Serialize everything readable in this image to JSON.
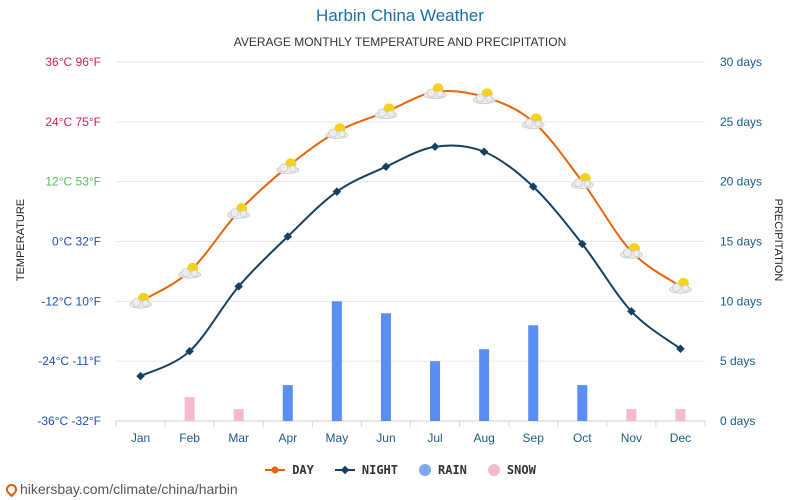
{
  "chart_data": {
    "type": "line",
    "title": "Harbin China Weather",
    "subtitle": "AVERAGE MONTHLY TEMPERATURE AND PRECIPITATION",
    "ylabel_left": "TEMPERATURE",
    "ylabel_right": "PRECIPITATION",
    "categories": [
      "Jan",
      "Feb",
      "Mar",
      "Apr",
      "May",
      "Jun",
      "Jul",
      "Aug",
      "Sep",
      "Oct",
      "Nov",
      "Dec"
    ],
    "temp_axis": {
      "ylim": [
        -36,
        36
      ],
      "ticks": [
        {
          "value": 36,
          "label": "36°C 96°F",
          "color": "#d81b60"
        },
        {
          "value": 24,
          "label": "24°C 75°F",
          "color": "#d81b60"
        },
        {
          "value": 12,
          "label": "12°C 53°F",
          "color": "#5cb85c"
        },
        {
          "value": 0,
          "label": "0°C 32°F",
          "color": "#1f4fb4"
        },
        {
          "value": -12,
          "label": "-12°C 10°F",
          "color": "#1f4fb4"
        },
        {
          "value": -24,
          "label": "-24°C -11°F",
          "color": "#1f4fb4"
        },
        {
          "value": -36,
          "label": "-36°C -32°F",
          "color": "#1f4fb4"
        }
      ]
    },
    "precip_axis": {
      "ylim": [
        0,
        30
      ],
      "ticks": [
        {
          "value": 30,
          "label": "30 days"
        },
        {
          "value": 25,
          "label": "25 days"
        },
        {
          "value": 20,
          "label": "20 days"
        },
        {
          "value": 15,
          "label": "15 days"
        },
        {
          "value": 10,
          "label": "10 days"
        },
        {
          "value": 5,
          "label": "5 days"
        },
        {
          "value": 0,
          "label": "0 days"
        }
      ]
    },
    "series": [
      {
        "name": "DAY",
        "kind": "line",
        "axis": "temperature",
        "color": "#e8640a",
        "values": [
          -12,
          -6,
          6,
          15,
          22,
          26,
          30,
          29,
          24,
          12,
          -2,
          -9
        ]
      },
      {
        "name": "NIGHT",
        "kind": "line",
        "axis": "temperature",
        "color": "#173f5f",
        "values": [
          -27,
          -22,
          -9,
          1,
          10,
          15,
          19,
          18,
          11,
          -0.5,
          -14,
          -21.5
        ]
      },
      {
        "name": "RAIN",
        "kind": "bar",
        "axis": "precipitation",
        "color": "#5b8ef5",
        "values": [
          0,
          0,
          0,
          3,
          10,
          9,
          5,
          6,
          8,
          3,
          0,
          0
        ]
      },
      {
        "name": "SNOW",
        "kind": "bar",
        "axis": "precipitation",
        "color": "#f4bccb",
        "values": [
          0,
          2,
          1,
          0,
          0,
          0,
          0,
          0,
          0,
          0,
          1,
          1
        ]
      }
    ],
    "legend": [
      {
        "name": "DAY",
        "color": "#e8640a"
      },
      {
        "name": "NIGHT",
        "color": "#173f5f"
      },
      {
        "name": "RAIN",
        "color": "#7fa9ee"
      },
      {
        "name": "SNOW",
        "color": "#f4bccb"
      }
    ],
    "legend_position": "bottom-center"
  },
  "footer": {
    "url": "hikersbay.com/climate/china/harbin"
  },
  "icons": {
    "weather_marker": "partly-sunny-icon",
    "footer_pin": "map-pin-icon"
  }
}
